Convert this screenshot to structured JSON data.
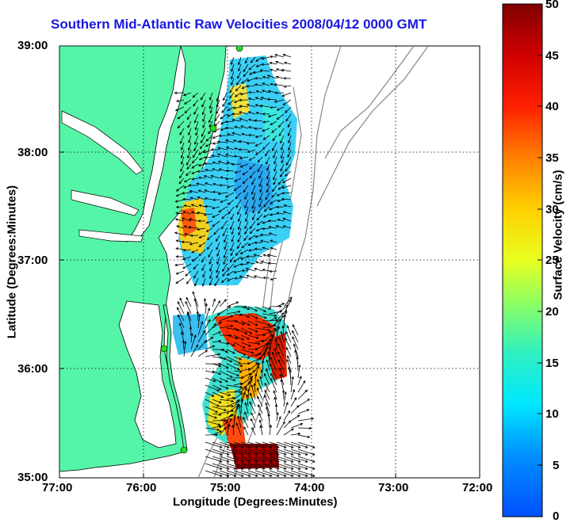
{
  "title": "Southern Mid-Atlantic Raw Velocities 2008/04/12 0000 GMT",
  "xlabel": "Longitude (Degrees:Minutes)",
  "ylabel": "Latitude (Degrees:Minutes)",
  "x_ticks": [
    "77:00",
    "76:00",
    "75:00",
    "74:00",
    "73:00",
    "72:00"
  ],
  "y_ticks": [
    "39:00",
    "38:00",
    "37:00",
    "36:00",
    "35:00"
  ],
  "colorbar": {
    "label": "Surface Velocity (cm/s)",
    "ticks": [
      "50",
      "45",
      "40",
      "35",
      "30",
      "25",
      "20",
      "15",
      "10",
      "5",
      "0"
    ],
    "range": [
      0,
      50
    ]
  },
  "colors": {
    "land": "#55f5a8",
    "coast_line": "#000000",
    "bathymetry": "#888888",
    "title": "#1818e0",
    "station": "#22dd22"
  },
  "icons": {
    "station_marker": "green-circle",
    "vector": "black-arrow"
  }
}
